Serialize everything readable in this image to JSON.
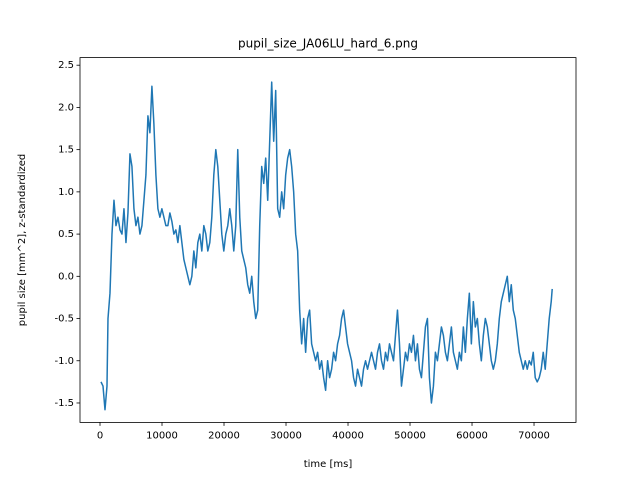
{
  "chart_data": {
    "type": "line",
    "title": "pupil_size_JA06LU_hard_6.png",
    "x_label": "time [ms]",
    "y_label": "pupil size [mm^2], z-standardized",
    "xlim": [
      -3226,
      76770
    ],
    "ylim": [
      -1.73,
      2.59
    ],
    "xticks": [
      0,
      10000,
      20000,
      30000,
      40000,
      50000,
      60000,
      70000
    ],
    "yticks": [
      -1.5,
      {
        "value": -1.0,
        "label": "-1.0"
      },
      -0.5,
      {
        "value": 0.0,
        "label": "0.0"
      },
      0.5,
      {
        "value": 1.0,
        "label": "1.0"
      },
      1.5,
      {
        "value": 2.0,
        "label": "2.0"
      },
      2.5
    ],
    "x": [
      161,
      483,
      805,
      1127,
      1288,
      1610,
      1932,
      2254,
      2576,
      2898,
      3220,
      3542,
      3864,
      4186,
      4508,
      4830,
      5152,
      5474,
      5796,
      6118,
      6440,
      6762,
      7084,
      7406,
      7728,
      8050,
      8372,
      8694,
      9016,
      9338,
      9660,
      9982,
      10304,
      10626,
      10948,
      11270,
      11592,
      11914,
      12236,
      12558,
      12880,
      13202,
      13524,
      13846,
      14168,
      14490,
      14812,
      15134,
      15456,
      15778,
      16100,
      16422,
      16744,
      17066,
      17388,
      17710,
      18032,
      18354,
      18676,
      18998,
      19320,
      19642,
      19964,
      20286,
      20608,
      20930,
      21252,
      21574,
      21896,
      22218,
      22540,
      22862,
      23184,
      23506,
      23828,
      24150,
      24472,
      24794,
      25116,
      25438,
      25760,
      26082,
      26404,
      26726,
      27048,
      27370,
      27692,
      28014,
      28336,
      28658,
      28980,
      29302,
      29624,
      29946,
      30268,
      30590,
      30912,
      31234,
      31556,
      31878,
      32200,
      32522,
      32844,
      33166,
      33488,
      33810,
      34132,
      34454,
      34776,
      35098,
      35420,
      35742,
      36064,
      36386,
      36708,
      37030,
      37352,
      37674,
      37996,
      38318,
      38640,
      38962,
      39284,
      39606,
      39928,
      40250,
      40572,
      40894,
      41216,
      41538,
      41860,
      42182,
      42504,
      42826,
      43148,
      43470,
      43792,
      44114,
      44436,
      44758,
      45080,
      45402,
      45724,
      46046,
      46368,
      46690,
      47012,
      47334,
      47656,
      47978,
      48300,
      48622,
      48944,
      49266,
      49588,
      49910,
      50232,
      50554,
      50876,
      51198,
      51520,
      51842,
      52164,
      52486,
      52808,
      53130,
      53452,
      53774,
      54096,
      54418,
      54740,
      55062,
      55384,
      55706,
      56028,
      56350,
      56672,
      56994,
      57316,
      57638,
      57960,
      58282,
      58604,
      58926,
      59248,
      59570,
      59892,
      60214,
      60536,
      60858,
      61180,
      61502,
      61824,
      62146,
      62468,
      62790,
      63112,
      63434,
      63756,
      64078,
      64400,
      64722,
      65044,
      65366,
      65688,
      66010,
      66332,
      66654,
      66976,
      67298,
      67620,
      67942,
      68264,
      68586,
      68908,
      69230,
      69552,
      69874,
      70196,
      70518,
      70840,
      71162,
      71484,
      71806,
      72128,
      72450,
      72772,
      72933
    ],
    "series": [
      {
        "color": "#1f77b4",
        "values": [
          -1.25,
          -1.3,
          -1.58,
          -1.3,
          -0.5,
          -0.2,
          0.5,
          0.9,
          0.6,
          0.7,
          0.55,
          0.5,
          0.8,
          0.4,
          0.75,
          1.45,
          1.3,
          0.8,
          0.6,
          0.7,
          0.5,
          0.6,
          0.9,
          1.2,
          1.9,
          1.7,
          2.25,
          1.8,
          1.2,
          0.8,
          0.7,
          0.8,
          0.7,
          0.6,
          0.6,
          0.75,
          0.65,
          0.5,
          0.55,
          0.4,
          0.6,
          0.4,
          0.2,
          0.1,
          0.0,
          -0.1,
          0.0,
          0.3,
          0.1,
          0.4,
          0.5,
          0.3,
          0.6,
          0.5,
          0.3,
          0.4,
          0.7,
          1.2,
          1.5,
          1.3,
          0.9,
          0.5,
          0.3,
          0.5,
          0.6,
          0.8,
          0.6,
          0.3,
          0.6,
          1.5,
          0.7,
          0.3,
          0.2,
          0.1,
          -0.1,
          -0.2,
          0.0,
          -0.3,
          -0.5,
          -0.4,
          0.6,
          1.3,
          1.1,
          1.4,
          0.9,
          1.6,
          2.3,
          1.6,
          2.2,
          0.8,
          0.7,
          1.0,
          0.8,
          1.2,
          1.4,
          1.5,
          1.3,
          1.0,
          0.5,
          0.3,
          -0.4,
          -0.8,
          -0.5,
          -0.9,
          -0.5,
          -0.4,
          -0.8,
          -0.9,
          -1.0,
          -0.9,
          -1.1,
          -1.0,
          -1.2,
          -1.35,
          -1.0,
          -1.2,
          -1.1,
          -0.9,
          -1.0,
          -0.8,
          -0.7,
          -0.5,
          -0.4,
          -0.6,
          -0.8,
          -0.9,
          -1.0,
          -1.2,
          -1.3,
          -1.1,
          -1.2,
          -1.3,
          -1.1,
          -1.0,
          -1.1,
          -1.0,
          -0.9,
          -1.0,
          -1.1,
          -0.9,
          -0.8,
          -1.0,
          -1.1,
          -0.9,
          -1.0,
          -0.8,
          -0.9,
          -1.0,
          -0.7,
          -0.4,
          -0.8,
          -1.3,
          -1.1,
          -0.9,
          -1.0,
          -0.8,
          -0.9,
          -0.7,
          -1.0,
          -0.8,
          -1.1,
          -1.2,
          -0.9,
          -0.6,
          -0.5,
          -1.2,
          -1.5,
          -1.3,
          -0.9,
          -1.0,
          -0.8,
          -0.6,
          -0.7,
          -0.9,
          -1.0,
          -0.8,
          -0.6,
          -0.9,
          -1.0,
          -1.1,
          -0.9,
          -1.0,
          -0.6,
          -0.9,
          -0.5,
          -0.2,
          -0.8,
          -0.3,
          -0.6,
          -0.5,
          -0.8,
          -1.0,
          -0.7,
          -0.5,
          -0.6,
          -0.8,
          -1.0,
          -1.1,
          -1.0,
          -0.8,
          -0.5,
          -0.3,
          -0.2,
          -0.1,
          0.0,
          -0.3,
          -0.1,
          -0.4,
          -0.5,
          -0.7,
          -0.9,
          -1.0,
          -1.1,
          -1.0,
          -1.1,
          -1.0,
          -1.05,
          -0.9,
          -1.2,
          -1.25,
          -1.2,
          -1.1,
          -0.9,
          -1.1,
          -0.8,
          -0.5,
          -0.3,
          -0.15
        ]
      }
    ]
  }
}
